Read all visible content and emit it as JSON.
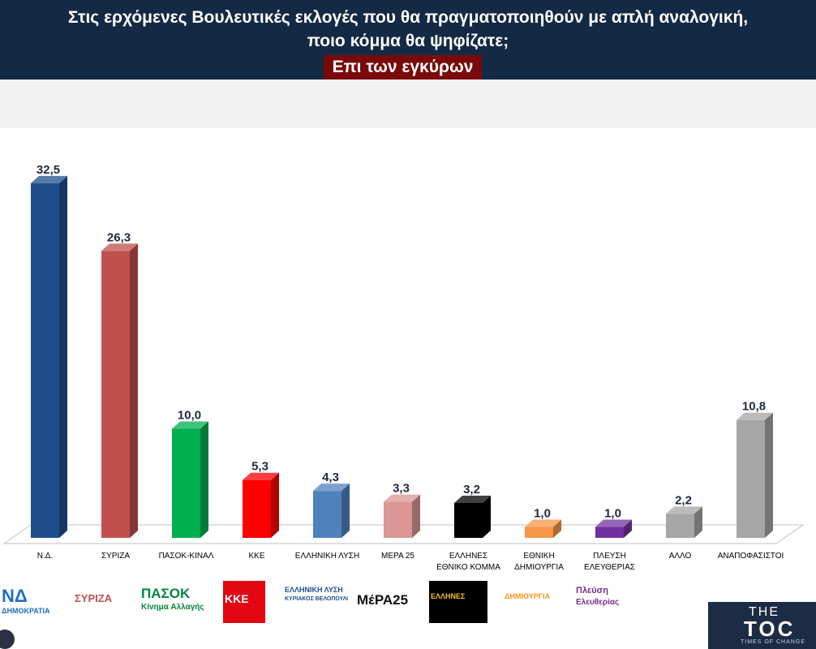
{
  "header": {
    "question_line1": "Στις ερχόμενες Βουλευτικές εκλογές που θα πραγματοποιηθούν με απλή αναλογική,",
    "question_line2": "ποιο κόμμα θα ψηφίζατε;",
    "subtitle": "Επι των εγκύρων"
  },
  "chart_data": {
    "type": "bar",
    "categories": [
      "Ν.Δ.",
      "ΣΥΡΙΖΑ",
      "ΠΑΣΟΚ-ΚΙΝΑΛ",
      "ΚΚΕ",
      "ΕΛΛΗΝΙΚΗ ΛΥΣΗ",
      "ΜΕΡΑ 25",
      "ΕΛΛΗΝΕΣ ΕΘΝΙΚΟ ΚΟΜΜΑ",
      "ΕΘΝΙΚΗ ΔΗΜΙΟΥΡΓΙΑ",
      "ΠΛΕΥΣΗ ΕΛΕΥΘΕΡΙΑΣ",
      "ΑΛΛΟ",
      "ΑΝΑΠΟΦΑΣΙΣΤΟΙ"
    ],
    "category_lines": [
      [
        "Ν.Δ."
      ],
      [
        "ΣΥΡΙΖΑ"
      ],
      [
        "ΠΑΣΟΚ-ΚΙΝΑΛ"
      ],
      [
        "ΚΚΕ"
      ],
      [
        "ΕΛΛΗΝΙΚΗ ΛΥΣΗ"
      ],
      [
        "ΜΕΡΑ 25"
      ],
      [
        "ΕΛΛΗΝΕΣ",
        "ΕΘΝΙΚΟ ΚΟΜΜΑ"
      ],
      [
        "ΕΘΝΙΚΗ",
        "ΔΗΜΙΟΥΡΓΙΑ"
      ],
      [
        "ΠΛΕΥΣΗ",
        "ΕΛΕΥΘΕΡΙΑΣ"
      ],
      [
        "ΑΛΛΟ"
      ],
      [
        "ΑΝΑΠΟΦΑΣΙΣΤΟΙ"
      ]
    ],
    "values": [
      32.5,
      26.3,
      10.0,
      5.3,
      4.3,
      3.3,
      3.2,
      1.0,
      1.0,
      2.2,
      10.8
    ],
    "value_labels": [
      "32,5",
      "26,3",
      "10,0",
      "5,3",
      "4,3",
      "3,3",
      "3,2",
      "1,0",
      "1,0",
      "2,2",
      "10,8"
    ],
    "colors": [
      "#1f4e8c",
      "#c0504d",
      "#00b050",
      "#ff0000",
      "#4f81bd",
      "#d99694",
      "#000000",
      "#f79646",
      "#7030a0",
      "#a6a6a6",
      "#a6a6a6"
    ],
    "title": "",
    "xlabel": "",
    "ylabel": "",
    "grid": false,
    "legend": "none"
  },
  "logos": [
    {
      "name": "Ν.Δ.",
      "text": "ΝΔ",
      "subtext": "ΔΗΜΟΚΡΑΤΙΑ",
      "color": "#1f6fc5"
    },
    {
      "name": "ΣΥΡΙΖΑ",
      "text": "ΣΥΡΙΖΑ",
      "subtext": "",
      "color": "#c0504d"
    },
    {
      "name": "ΠΑΣΟΚ",
      "text": "ΠΑΣΟΚ",
      "subtext": "Κίνημα Αλλαγής",
      "color": "#00873c"
    },
    {
      "name": "ΚΚΕ",
      "text": "ΚΚΕ",
      "subtext": "",
      "color": "#e30613"
    },
    {
      "name": "ΕΛΛΗΝΙΚΗ ΛΥΣΗ",
      "text": "ΕΛΛΗΝΙΚΗ ΛΥΣΗ",
      "subtext": "ΚΥΡΙΑΚΟΣ ΒΕΛΟΠΟΥΛΟΣ",
      "color": "#1b4f8f"
    },
    {
      "name": "ΜέΡΑ25",
      "text": "ΜέΡΑ25",
      "subtext": "",
      "color": "#111111"
    },
    {
      "name": "ΕΛΛΗΝΕΣ",
      "text": "ΕΛΛΗΝΕΣ",
      "subtext": "",
      "color": "#f5c518"
    },
    {
      "name": "ΕΘΝΙΚΗ ΔΗΜΙΟΥΡΓΙΑ",
      "text": "ΔΗΜΙΟΥΡΓΙΑ",
      "subtext": "",
      "color": "#f7941d"
    },
    {
      "name": "Πλεύση Ελευθερίας",
      "text": "Πλεύση",
      "subtext": "Ελευθερίας",
      "color": "#7b2d8e"
    }
  ],
  "brand": {
    "line1": "THE",
    "line2": "TOC",
    "tagline": "TIMES OF CHANGE"
  }
}
